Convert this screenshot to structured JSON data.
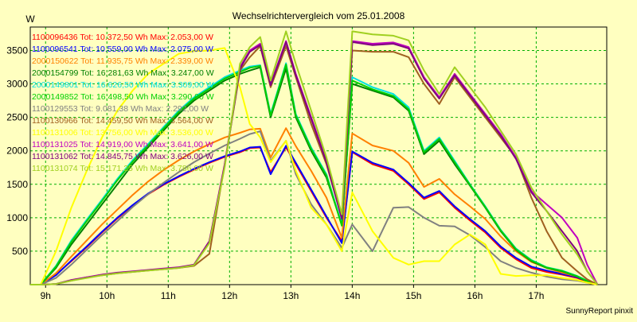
{
  "chart_data": {
    "type": "line",
    "title": "Wechselrichtervergleich vom 25.01.2008",
    "ylabel": "W",
    "xlabel": "",
    "footer": "SunnyReport pinxit",
    "ylim": [
      0,
      3850
    ],
    "xlim": [
      8.75,
      18.15
    ],
    "yticks": [
      500,
      1000,
      1500,
      2000,
      2500,
      3000,
      3500
    ],
    "xticks": [
      {
        "value": 9,
        "label": "9h"
      },
      {
        "value": 10,
        "label": "10h"
      },
      {
        "value": 11,
        "label": "11h"
      },
      {
        "value": 12,
        "label": "12h"
      },
      {
        "value": 13,
        "label": "13h"
      },
      {
        "value": 14,
        "label": "14h"
      },
      {
        "value": 15,
        "label": "15h"
      },
      {
        "value": 16,
        "label": "16h"
      },
      {
        "value": 17,
        "label": "17h"
      }
    ],
    "grid": true,
    "legend_position": "top-left",
    "x": [
      8.75,
      8.92,
      9.17,
      9.42,
      9.67,
      9.92,
      10.17,
      10.42,
      10.67,
      10.92,
      11.17,
      11.42,
      11.67,
      11.92,
      12.17,
      12.33,
      12.5,
      12.67,
      12.92,
      13.08,
      13.33,
      13.58,
      13.83,
      14.0,
      14.33,
      14.67,
      14.92,
      15.17,
      15.42,
      15.67,
      15.92,
      16.17,
      16.42,
      16.67,
      16.92,
      17.17,
      17.42,
      17.67,
      17.83,
      18.0
    ],
    "series": [
      {
        "name": "1100096436 Tot: 10.372,50 Wh Max: 2.053,00 W",
        "color": "#FF0000",
        "values": [
          0,
          0,
          150,
          350,
          560,
          780,
          990,
          1180,
          1350,
          1490,
          1610,
          1720,
          1820,
          1910,
          1980,
          2040,
          2050,
          1680,
          2053,
          1800,
          1400,
          1000,
          650,
          1980,
          1800,
          1700,
          1500,
          1280,
          1380,
          1150,
          960,
          780,
          550,
          380,
          250,
          190,
          150,
          100,
          40,
          0
        ]
      },
      {
        "name": "1100096541 Tot: 10.559,00 Wh Max: 2.075,00 W",
        "color": "#0000FF",
        "values": [
          0,
          0,
          140,
          360,
          570,
          790,
          1000,
          1190,
          1360,
          1500,
          1620,
          1730,
          1830,
          1920,
          1990,
          2050,
          2060,
          1650,
          2075,
          1820,
          1420,
          1020,
          620,
          1990,
          1820,
          1720,
          1520,
          1300,
          1400,
          1170,
          980,
          800,
          570,
          400,
          270,
          210,
          160,
          110,
          50,
          0
        ]
      },
      {
        "name": "2000150622 Tot: 11.935,75 Wh Max: 2.339,00 W",
        "color": "#FF8000",
        "values": [
          0,
          0,
          170,
          420,
          660,
          900,
          1120,
          1340,
          1540,
          1710,
          1860,
          1990,
          2100,
          2200,
          2270,
          2320,
          2330,
          1900,
          2339,
          2070,
          1700,
          1300,
          700,
          2260,
          2080,
          2000,
          1820,
          1460,
          1580,
          1350,
          1170,
          980,
          720,
          500,
          340,
          250,
          180,
          120,
          50,
          0
        ]
      },
      {
        "name": "2000154799 Tot: 16.281,63 Wh Max: 3.247,00 W",
        "color": "#008000",
        "values": [
          0,
          0,
          250,
          600,
          900,
          1200,
          1500,
          1800,
          2050,
          2300,
          2550,
          2750,
          2900,
          3050,
          3150,
          3200,
          3247,
          2500,
          3230,
          2500,
          2000,
          1600,
          900,
          3000,
          2900,
          2800,
          2600,
          1950,
          2150,
          1800,
          1480,
          1150,
          800,
          520,
          350,
          250,
          200,
          120,
          50,
          0
        ]
      },
      {
        "name": "2000149801 Tot: 16.626,50 Wh Max: 3.309,00 W",
        "color": "#00E0E0",
        "values": [
          0,
          0,
          280,
          660,
          970,
          1270,
          1580,
          1860,
          2100,
          2350,
          2600,
          2800,
          2950,
          3100,
          3200,
          3260,
          3280,
          2550,
          3309,
          2550,
          2050,
          1650,
          900,
          3100,
          2950,
          2850,
          2650,
          2000,
          2200,
          1850,
          1500,
          1170,
          820,
          540,
          370,
          260,
          210,
          130,
          60,
          0
        ]
      },
      {
        "name": "2000149852 Tot: 16.498,50 Wh Max: 3.290,00 W",
        "color": "#00D000",
        "values": [
          0,
          0,
          270,
          640,
          950,
          1250,
          1560,
          1840,
          2080,
          2330,
          2580,
          2780,
          2930,
          3080,
          3180,
          3240,
          3270,
          2530,
          3290,
          2530,
          2030,
          1630,
          880,
          3050,
          2920,
          2820,
          2620,
          1980,
          2180,
          1830,
          1490,
          1160,
          810,
          530,
          360,
          255,
          205,
          125,
          55,
          0
        ]
      },
      {
        "name": "1100129553 Tot: 9.081,38 Wh Max: 2.292,00 W",
        "color": "#808080",
        "values": [
          0,
          0,
          100,
          300,
          520,
          740,
          950,
          1160,
          1350,
          1520,
          1680,
          1830,
          1960,
          2080,
          2180,
          2250,
          2292,
          1850,
          2150,
          1650,
          1200,
          900,
          550,
          900,
          500,
          1150,
          1160,
          1000,
          880,
          870,
          740,
          560,
          350,
          250,
          180,
          120,
          80,
          60,
          30,
          0
        ]
      },
      {
        "name": "1100130966 Tot: 14.459,50 Wh Max: 3.564,00 W",
        "color": "#A06020",
        "values": [
          0,
          0,
          10,
          60,
          110,
          140,
          170,
          190,
          210,
          230,
          250,
          280,
          460,
          1800,
          3200,
          3400,
          3564,
          2950,
          3564,
          3100,
          2400,
          1800,
          1000,
          3500,
          3480,
          3480,
          3400,
          3000,
          2700,
          3100,
          2800,
          2500,
          2200,
          1900,
          1300,
          800,
          400,
          200,
          80,
          0
        ]
      },
      {
        "name": "1100131006 Tot: 13.756,00 Wh Max: 3.536,00 W",
        "color": "#FFFF00",
        "values": [
          0,
          0,
          500,
          1150,
          1700,
          2200,
          2600,
          2900,
          3150,
          3300,
          3450,
          3490,
          3500,
          3536,
          2950,
          2400,
          2200,
          1830,
          2150,
          1700,
          1150,
          900,
          500,
          1380,
          800,
          400,
          300,
          350,
          350,
          600,
          750,
          600,
          160,
          130,
          140,
          140,
          100,
          70,
          30,
          0
        ]
      },
      {
        "name": "1100131025 Tot: 14.919,00 Wh Max: 3.641,00 W",
        "color": "#C000C0",
        "values": [
          0,
          0,
          10,
          70,
          110,
          150,
          180,
          200,
          220,
          240,
          260,
          300,
          650,
          1800,
          3250,
          3500,
          3600,
          3000,
          3641,
          3150,
          2500,
          1850,
          1000,
          3641,
          3600,
          3620,
          3550,
          3100,
          2800,
          3150,
          2850,
          2550,
          2250,
          1900,
          1400,
          1200,
          1000,
          700,
          300,
          0
        ]
      },
      {
        "name": "1100131062 Tot: 14.845,75 Wh Max: 3.626,00 W",
        "color": "#800080",
        "values": [
          0,
          0,
          10,
          65,
          105,
          145,
          175,
          195,
          215,
          235,
          255,
          295,
          640,
          1780,
          3230,
          3480,
          3580,
          2980,
          3626,
          3130,
          2480,
          1830,
          980,
          3626,
          3580,
          3600,
          3530,
          3080,
          2780,
          3130,
          2830,
          2530,
          2230,
          1880,
          1380,
          1100,
          800,
          500,
          200,
          0
        ]
      },
      {
        "name": "1100131074 Tot: 15.171,25 Wh Max: 3.786,00 W",
        "color": "#A0D020",
        "values": [
          0,
          0,
          10,
          60,
          100,
          140,
          170,
          190,
          210,
          230,
          250,
          290,
          620,
          1760,
          3300,
          3550,
          3700,
          3050,
          3786,
          3300,
          2600,
          1900,
          1050,
          3786,
          3740,
          3720,
          3650,
          3200,
          2850,
          3250,
          2950,
          2650,
          2300,
          1950,
          1450,
          1100,
          750,
          450,
          200,
          0
        ]
      }
    ]
  }
}
